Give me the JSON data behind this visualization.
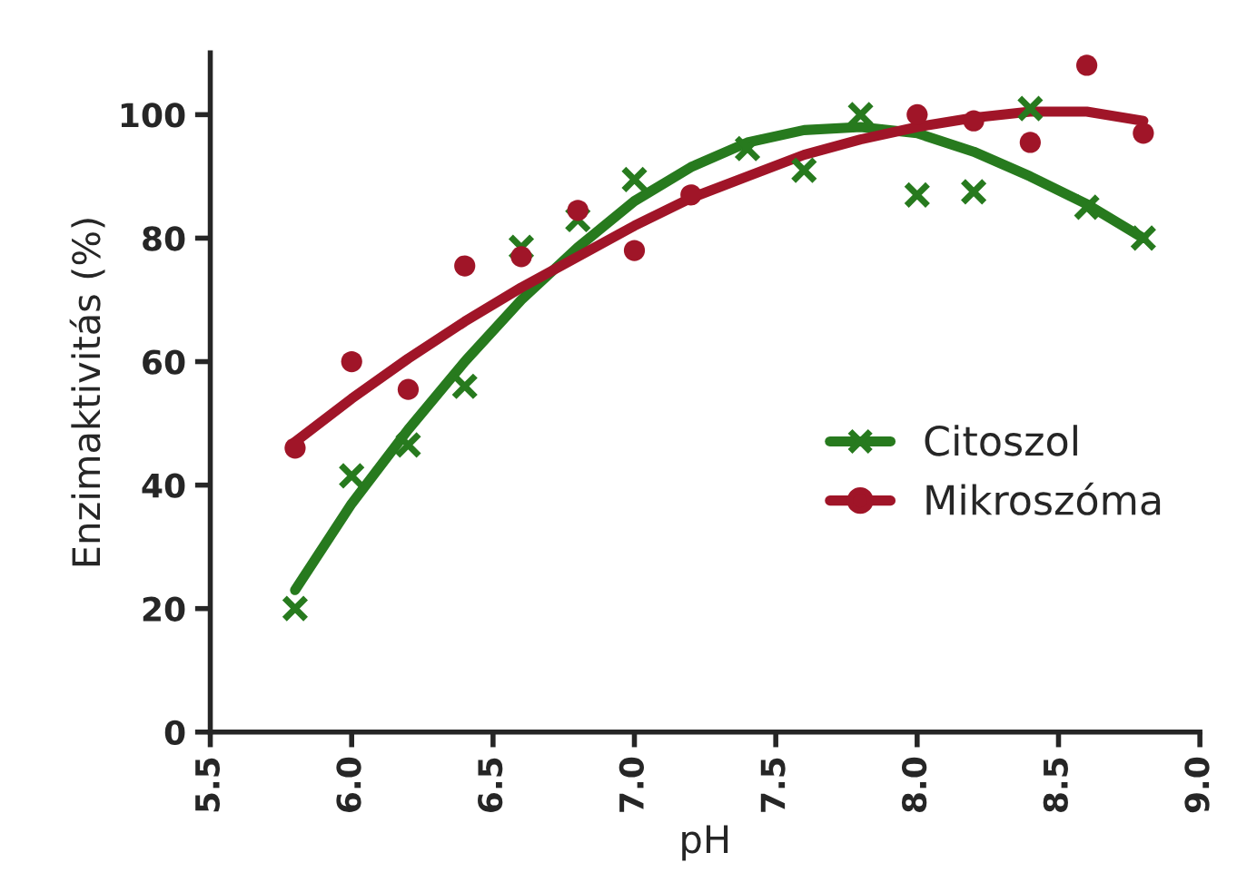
{
  "chart_data": {
    "type": "scatter",
    "xlabel": "pH",
    "ylabel": "Enzimaktivitás (%)",
    "xlim": [
      5.5,
      9.0
    ],
    "ylim": [
      0,
      110
    ],
    "xticks": [
      {
        "value": 5.5,
        "label": "5.5"
      },
      {
        "value": 6.0,
        "label": "6.0"
      },
      {
        "value": 6.5,
        "label": "6.5"
      },
      {
        "value": 7.0,
        "label": "7.0"
      },
      {
        "value": 7.5,
        "label": "7.5"
      },
      {
        "value": 8.0,
        "label": "8.0"
      },
      {
        "value": 8.5,
        "label": "8.5"
      },
      {
        "value": 9.0,
        "label": "9.0"
      }
    ],
    "yticks": [
      0,
      20,
      40,
      60,
      80,
      100
    ],
    "grid": false,
    "legend": "right",
    "series": [
      {
        "name": "Citoszol",
        "marker": "cross",
        "color": "#277a1e",
        "x": [
          5.8,
          6.0,
          6.2,
          6.4,
          6.6,
          6.8,
          7.0,
          7.4,
          7.6,
          7.8,
          8.0,
          8.2,
          8.4,
          8.6,
          8.8
        ],
        "values": [
          20,
          41.5,
          46.5,
          56,
          78.5,
          83,
          89.5,
          94.5,
          91,
          100,
          87,
          87.5,
          101,
          85,
          80
        ]
      },
      {
        "name": "Mikroszóma",
        "marker": "circle",
        "color": "#a01528",
        "x": [
          5.8,
          6.0,
          6.2,
          6.4,
          6.6,
          6.8,
          7.0,
          7.2,
          8.0,
          8.2,
          8.4,
          8.6,
          8.8
        ],
        "values": [
          46,
          60,
          55.5,
          75.5,
          77,
          84.5,
          78,
          87,
          100,
          99,
          95.5,
          108,
          97
        ]
      },
      {
        "type": "line",
        "color": "#277a1e",
        "line_style": "solid",
        "x": [
          5.8,
          6.0,
          6.2,
          6.4,
          6.6,
          6.8,
          7.0,
          7.2,
          7.4,
          7.6,
          7.8,
          8.0,
          8.2,
          8.4,
          8.6,
          8.8
        ],
        "values": [
          23,
          37,
          49,
          60,
          70,
          78.5,
          86,
          91.5,
          95.5,
          97.5,
          98,
          97,
          94,
          90,
          85.5,
          80
        ]
      },
      {
        "type": "line",
        "color": "#a01528",
        "line_style": "solid",
        "x": [
          5.8,
          6.0,
          6.2,
          6.4,
          6.6,
          6.8,
          7.0,
          7.2,
          7.4,
          7.6,
          7.8,
          8.0,
          8.2,
          8.4,
          8.6,
          8.8
        ],
        "values": [
          47,
          54,
          60.5,
          66.5,
          72,
          77,
          82,
          86.5,
          90,
          93.5,
          96,
          98,
          99.5,
          100.5,
          100.5,
          99
        ]
      }
    ]
  }
}
